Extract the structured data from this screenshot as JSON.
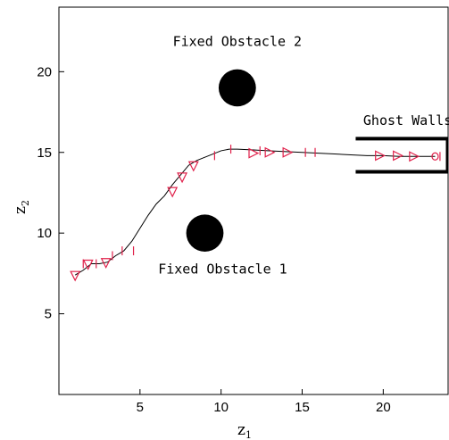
{
  "chart_data": {
    "type": "scatter",
    "xlabel": "z",
    "xlabel_sub": "1",
    "ylabel": "z",
    "ylabel_sub": "2",
    "xlim": [
      0,
      24
    ],
    "ylim": [
      0,
      24
    ],
    "xticks": [
      5,
      10,
      15,
      20
    ],
    "yticks": [
      5,
      10,
      15,
      20
    ],
    "grid": false,
    "path": {
      "x": [
        1.0,
        1.5,
        2.0,
        2.5,
        3.0,
        3.5,
        4.0,
        4.5,
        5.0,
        5.5,
        6.0,
        6.5,
        7.0,
        7.5,
        8.0,
        8.5,
        9.0,
        9.5,
        10.0,
        10.5,
        11.0,
        12.0,
        13.0,
        14.0,
        15.0,
        16.0,
        17.0,
        18.0,
        19.0,
        20.0,
        21.0,
        22.0,
        23.2
      ],
      "y": [
        7.4,
        7.7,
        8.1,
        8.1,
        8.2,
        8.6,
        8.9,
        9.5,
        10.3,
        11.1,
        11.8,
        12.3,
        13.0,
        13.6,
        14.2,
        14.5,
        14.7,
        14.9,
        15.1,
        15.2,
        15.2,
        15.15,
        15.1,
        15.05,
        15.0,
        14.95,
        14.9,
        14.85,
        14.8,
        14.8,
        14.75,
        14.75,
        14.75
      ]
    },
    "triangle_markers": [
      {
        "x": 1.0,
        "y": 7.4,
        "dir": "down"
      },
      {
        "x": 1.8,
        "y": 8.1,
        "dir": "down"
      },
      {
        "x": 2.9,
        "y": 8.2,
        "dir": "down"
      },
      {
        "x": 7.0,
        "y": 12.6,
        "dir": "down"
      },
      {
        "x": 7.6,
        "y": 13.5,
        "dir": "down"
      },
      {
        "x": 8.3,
        "y": 14.2,
        "dir": "down"
      },
      {
        "x": 12.0,
        "y": 14.95,
        "dir": "right"
      },
      {
        "x": 13.0,
        "y": 15.0,
        "dir": "right"
      },
      {
        "x": 14.1,
        "y": 15.0,
        "dir": "right"
      },
      {
        "x": 19.8,
        "y": 14.8,
        "dir": "right"
      },
      {
        "x": 20.9,
        "y": 14.8,
        "dir": "right"
      },
      {
        "x": 21.9,
        "y": 14.75,
        "dir": "right"
      }
    ],
    "bar_markers": [
      {
        "x": 1.5,
        "y": 8.1
      },
      {
        "x": 2.3,
        "y": 8.1
      },
      {
        "x": 3.3,
        "y": 8.6
      },
      {
        "x": 3.9,
        "y": 8.9
      },
      {
        "x": 4.6,
        "y": 8.9
      },
      {
        "x": 9.6,
        "y": 14.8
      },
      {
        "x": 10.6,
        "y": 15.2
      },
      {
        "x": 12.4,
        "y": 15.1
      },
      {
        "x": 15.2,
        "y": 15.0
      },
      {
        "x": 15.8,
        "y": 15.0
      },
      {
        "x": 23.5,
        "y": 14.75
      }
    ],
    "end_marker": {
      "x": 23.2,
      "y": 14.75
    },
    "obstacles": [
      {
        "name": "Fixed Obstacle 1",
        "x": 9.0,
        "y": 10.0,
        "r": 1.15
      },
      {
        "name": "Fixed Obstacle 2",
        "x": 11.0,
        "y": 19.0,
        "r": 1.15
      }
    ],
    "ghost_walls": {
      "x_start": 18.3,
      "x_end": 24,
      "y_top": 15.85,
      "y_bottom": 13.8
    },
    "annotations": [
      {
        "text": "Fixed Obstacle 2",
        "x": 11.0,
        "y": 21.6
      },
      {
        "text": "Fixed Obstacle 1",
        "x": 10.1,
        "y": 7.5
      },
      {
        "text": "Ghost Walls",
        "x": 21.5,
        "y": 16.7
      }
    ],
    "colors": {
      "path": "#000000",
      "markers": "#e0204a",
      "obstacles": "#000000",
      "walls": "#000000"
    }
  }
}
